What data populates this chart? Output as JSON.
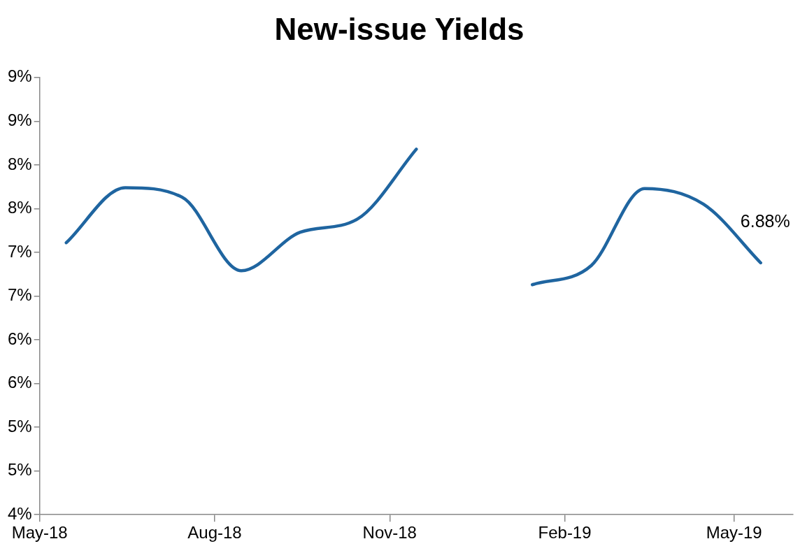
{
  "chart_data": {
    "type": "line",
    "title": "New-issue Yields",
    "x": [
      "2018-05-15",
      "2018-06-15",
      "2018-07-15",
      "2018-08-15",
      "2018-09-15",
      "2018-10-15",
      "2018-11-15",
      "2018-12-15",
      "2019-01-15",
      "2019-02-15",
      "2019-03-15",
      "2019-04-15",
      "2019-05-15"
    ],
    "series": [
      {
        "color": "#1f65a0",
        "values": [
          7.11,
          7.74,
          7.63,
          6.79,
          7.23,
          7.38,
          8.18,
          null,
          6.63,
          6.85,
          7.73,
          7.55,
          6.88
        ]
      }
    ],
    "xlim": [
      "2018-05-01",
      "2019-06-01"
    ],
    "xticks": [
      {
        "value": "2018-05-01",
        "label": "May-18"
      },
      {
        "value": "2018-08-01",
        "label": "Aug-18"
      },
      {
        "value": "2018-11-01",
        "label": "Nov-18"
      },
      {
        "value": "2019-02-01",
        "label": "Feb-19"
      },
      {
        "value": "2019-05-01",
        "label": "May-19"
      }
    ],
    "ylim": [
      4,
      9
    ],
    "yticks": [
      {
        "value": 4,
        "label": "4%"
      },
      {
        "value": 4.5,
        "label": "5%"
      },
      {
        "value": 5,
        "label": "5%"
      },
      {
        "value": 5.5,
        "label": "6%"
      },
      {
        "value": 6,
        "label": "6%"
      },
      {
        "value": 6.5,
        "label": "7%"
      },
      {
        "value": 7,
        "label": "7%"
      },
      {
        "value": 7.5,
        "label": "8%"
      },
      {
        "value": 8,
        "label": "8%"
      },
      {
        "value": 8.5,
        "label": "9%"
      },
      {
        "value": 9,
        "label": "9%"
      }
    ],
    "annotations": [
      {
        "text": "6.88%",
        "x": "2019-05-15",
        "y": 6.88
      }
    ],
    "grid": false,
    "legend": false,
    "marker": "none",
    "line_style": "solid"
  }
}
